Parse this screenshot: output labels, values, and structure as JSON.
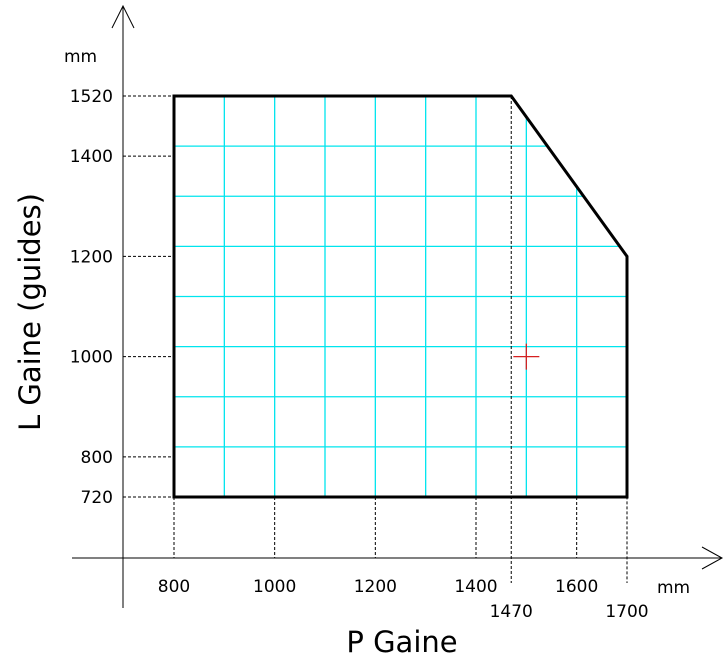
{
  "chart_data": {
    "type": "area",
    "xlabel": "P Gaine",
    "ylabel": "L Gaine (guides)",
    "x_unit": "mm",
    "y_unit": "mm",
    "xlim": [
      700,
      1790
    ],
    "ylim": [
      610,
      1900
    ],
    "x_ticks": [
      800,
      1000,
      1200,
      1400,
      1470,
      1600,
      1700
    ],
    "x_tick_labels": [
      "800",
      "1000",
      "1200",
      "1400",
      "1470",
      "1600",
      "1700"
    ],
    "x_ticks_low": [
      1470,
      1700
    ],
    "y_ticks": [
      720,
      800,
      1000,
      1200,
      1400,
      1520
    ],
    "y_tick_labels": [
      "720",
      "800",
      "1000",
      "1200",
      "1400",
      "1520"
    ],
    "grid": true,
    "grid_x_step": 100,
    "grid_y_step": 100,
    "grid_color": "#00e5ee",
    "region_outline_color": "#000000",
    "region": [
      {
        "x": 800,
        "y": 720
      },
      {
        "x": 800,
        "y": 1520
      },
      {
        "x": 1470,
        "y": 1520
      },
      {
        "x": 1700,
        "y": 1200
      },
      {
        "x": 1700,
        "y": 720
      }
    ],
    "marker": {
      "x": 1500,
      "y": 1000,
      "symbol": "+",
      "color": "#d62020"
    }
  }
}
